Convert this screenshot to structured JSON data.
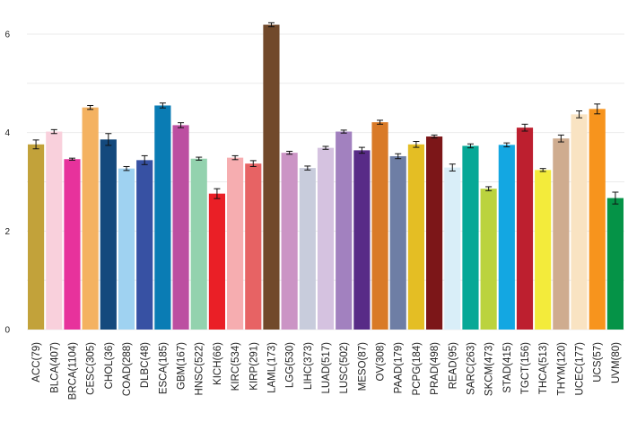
{
  "chart_data": {
    "type": "bar",
    "title": "",
    "xlabel": "",
    "ylabel": "",
    "ylim": [
      0,
      6.3
    ],
    "yticks": [
      0,
      2,
      4,
      6
    ],
    "grid": true,
    "error_bars": true,
    "categories": [
      "ACC(79)",
      "BLCA(407)",
      "BRCA(1104)",
      "CESC(305)",
      "CHOL(36)",
      "COAD(288)",
      "DLBC(48)",
      "ESCA(185)",
      "GBM(167)",
      "HNSC(522)",
      "KICH(66)",
      "KIRC(534)",
      "KIRP(291)",
      "LAML(173)",
      "LGG(530)",
      "LIHC(373)",
      "LUAD(517)",
      "LUSC(502)",
      "MESO(87)",
      "OV(308)",
      "PAAD(179)",
      "PCPG(184)",
      "PRAD(498)",
      "READ(95)",
      "SARC(263)",
      "SKCM(473)",
      "STAD(415)",
      "TGCT(156)",
      "THCA(513)",
      "THYM(120)",
      "UCEC(177)",
      "UCS(57)",
      "UVM(80)"
    ],
    "values": [
      3.76,
      4.02,
      3.46,
      4.51,
      3.86,
      3.27,
      3.44,
      4.55,
      4.15,
      3.47,
      2.76,
      3.49,
      3.37,
      6.19,
      3.59,
      3.28,
      3.69,
      4.02,
      3.64,
      4.21,
      3.52,
      3.76,
      3.92,
      3.29,
      3.73,
      2.86,
      3.75,
      4.1,
      3.24,
      3.88,
      4.37,
      4.48,
      2.67
    ],
    "errors": [
      0.09,
      0.04,
      0.02,
      0.04,
      0.12,
      0.04,
      0.09,
      0.05,
      0.05,
      0.03,
      0.1,
      0.04,
      0.06,
      0.04,
      0.03,
      0.04,
      0.03,
      0.03,
      0.06,
      0.04,
      0.05,
      0.06,
      0.03,
      0.07,
      0.04,
      0.04,
      0.04,
      0.07,
      0.03,
      0.07,
      0.07,
      0.1,
      0.12
    ],
    "colors": [
      "#c2a23a",
      "#f9d0dc",
      "#e7329c",
      "#f4b261",
      "#14497d",
      "#9fd2f1",
      "#3751a3",
      "#0a7cb4",
      "#bc4fa1",
      "#93d2ae",
      "#ea1f26",
      "#f6adb0",
      "#e76364",
      "#71492b",
      "#cb94c5",
      "#c8ccdc",
      "#d5c2e0",
      "#a281bf",
      "#582b87",
      "#d97a27",
      "#6e7ea5",
      "#e4be24",
      "#7c1618",
      "#d9eef8",
      "#07a896",
      "#bbd33e",
      "#13a7e2",
      "#bd1f2f",
      "#f3eb3b",
      "#cfac8f",
      "#f9e3c2",
      "#f7941d",
      "#059347"
    ]
  }
}
